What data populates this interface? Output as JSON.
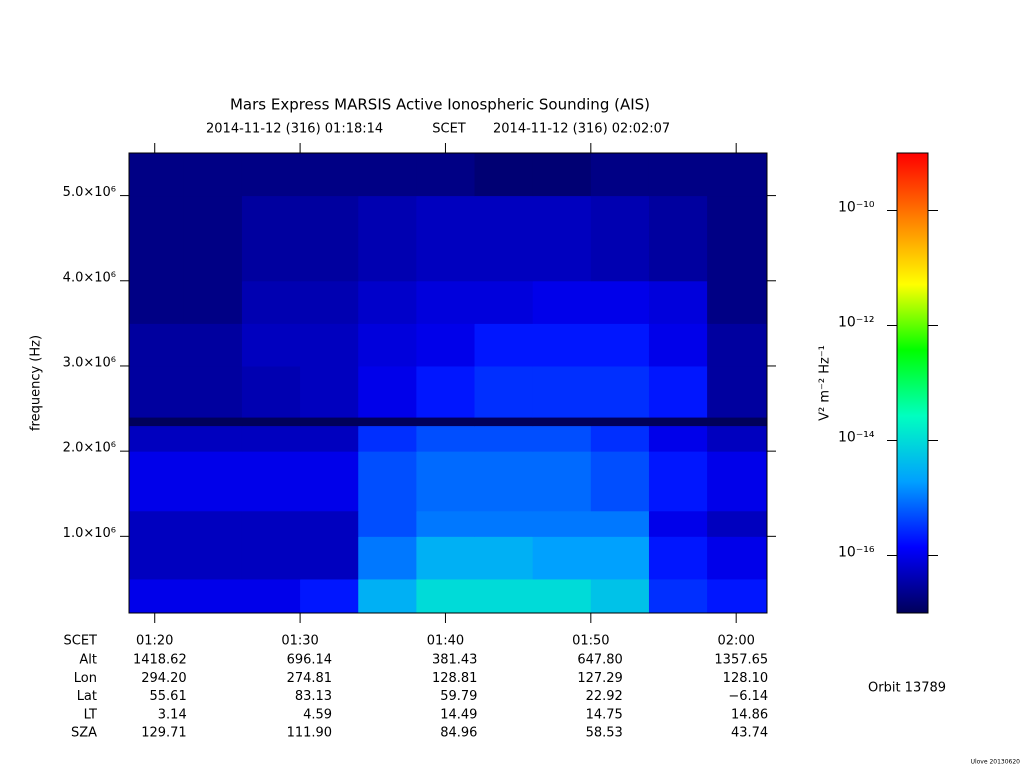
{
  "chart_data": {
    "type": "heatmap",
    "title": "Mars Express MARSIS Active Ionospheric Sounding (AIS)",
    "subtitle_start": "2014-11-12 (316) 01:18:14",
    "subtitle_mid": "SCET",
    "subtitle_end": "2014-11-12 (316) 02:02:07",
    "y_label": "frequency (Hz)",
    "xlim": [
      18.23,
      62.12
    ],
    "ylim": [
      100000,
      5500000
    ],
    "xticks": [
      {
        "value": 20,
        "label": "01:20"
      },
      {
        "value": 30,
        "label": "01:30"
      },
      {
        "value": 40,
        "label": "01:40"
      },
      {
        "value": 50,
        "label": "01:50"
      },
      {
        "value": 60,
        "label": "02:00"
      }
    ],
    "yticks": [
      {
        "value": 1000000,
        "label": "1.0×10⁶"
      },
      {
        "value": 2000000,
        "label": "2.0×10⁶"
      },
      {
        "value": 3000000,
        "label": "3.0×10⁶"
      },
      {
        "value": 4000000,
        "label": "4.0×10⁶"
      },
      {
        "value": 5000000,
        "label": "5.0×10⁶"
      }
    ],
    "x_bins": [
      18.23,
      22,
      26,
      30,
      34,
      38,
      42,
      46,
      50,
      54,
      58,
      62.12
    ],
    "y_bins": [
      100000,
      500000,
      1000000,
      1300000,
      2000000,
      2300000,
      2400000,
      3000000,
      3500000,
      4000000,
      5000000,
      5500000
    ],
    "z": [
      [
        1e-16,
        1e-16,
        1e-16,
        2e-16,
        3e-15,
        1e-14,
        1e-14,
        1e-14,
        5e-15,
        3e-16,
        2e-16
      ],
      [
        5e-17,
        5e-17,
        5e-17,
        5e-17,
        1e-15,
        3e-15,
        3e-15,
        2e-15,
        2e-15,
        2e-16,
        1e-16
      ],
      [
        5e-17,
        5e-17,
        5e-17,
        5e-17,
        5e-16,
        1e-15,
        1e-15,
        1e-15,
        1e-15,
        1e-16,
        5e-17
      ],
      [
        1e-16,
        1e-16,
        1e-16,
        1e-16,
        5e-16,
        8e-16,
        8e-16,
        8e-16,
        5e-16,
        2e-16,
        1e-16
      ],
      [
        5e-17,
        5e-17,
        5e-17,
        5e-17,
        3e-16,
        5e-16,
        5e-16,
        5e-16,
        3e-16,
        1e-16,
        5e-17
      ],
      [
        1e-17,
        1e-17,
        1e-17,
        1e-17,
        1e-17,
        1e-17,
        1e-17,
        1e-17,
        1e-17,
        1e-17,
        1e-17
      ],
      [
        3e-17,
        3e-17,
        4e-17,
        5e-17,
        1e-16,
        2e-16,
        3e-16,
        3e-16,
        3e-16,
        2e-16,
        3e-17
      ],
      [
        3e-17,
        3e-17,
        5e-17,
        5e-17,
        8e-17,
        1e-16,
        2e-16,
        2e-16,
        2e-16,
        1e-16,
        3e-17
      ],
      [
        2e-17,
        2e-17,
        4e-17,
        4e-17,
        6e-17,
        8e-17,
        8e-17,
        1e-16,
        1e-16,
        8e-17,
        2e-17
      ],
      [
        2e-17,
        2e-17,
        3e-17,
        3e-17,
        4e-17,
        5e-17,
        5e-17,
        5e-17,
        4e-17,
        3e-17,
        2e-17
      ],
      [
        2e-17,
        2e-17,
        2e-17,
        2e-17,
        2e-17,
        2e-17,
        1.5e-17,
        1.5e-17,
        2e-17,
        2e-17,
        2e-17
      ]
    ],
    "colormap": [
      "#00005a",
      "#0000ff",
      "#00a0ff",
      "#00ffc0",
      "#00ff00",
      "#ffff00",
      "#ff8000",
      "#ff0000"
    ],
    "clim": [
      1e-17,
      1e-09
    ],
    "clog": true,
    "cticks": [
      {
        "value": 1e-16,
        "label": "10⁻¹⁶"
      },
      {
        "value": 1e-14,
        "label": "10⁻¹⁴"
      },
      {
        "value": 1e-12,
        "label": "10⁻¹²"
      },
      {
        "value": 1e-10,
        "label": "10⁻¹⁰"
      }
    ],
    "colorbar_label": "V² m⁻² Hz⁻¹",
    "table_header": "SCET",
    "table_rows": [
      {
        "label": "Alt",
        "values": [
          1418.62,
          696.14,
          381.43,
          647.8,
          1357.65
        ],
        "value_labels": [
          "1418.62",
          "696.14",
          "381.43",
          "647.80",
          "1357.65"
        ]
      },
      {
        "label": "Lon",
        "values": [
          294.2,
          274.81,
          128.81,
          127.29,
          128.1
        ],
        "value_labels": [
          "294.20",
          "274.81",
          "128.81",
          "127.29",
          "128.10"
        ]
      },
      {
        "label": "Lat",
        "values": [
          55.61,
          83.13,
          59.79,
          22.92,
          -6.14
        ],
        "value_labels": [
          "55.61",
          "83.13",
          "59.79",
          "22.92",
          "−6.14"
        ]
      },
      {
        "label": "LT",
        "values": [
          3.14,
          4.59,
          14.49,
          14.75,
          14.86
        ]
      },
      {
        "label": "SZA",
        "values": [
          129.71,
          111.9,
          84.96,
          58.53,
          43.74
        ],
        "value_labels": [
          "129.71",
          "111.90",
          "84.96",
          "58.53",
          "43.74"
        ]
      }
    ],
    "orbit": "Orbit 13789",
    "credit": "Ulove 20130620"
  }
}
